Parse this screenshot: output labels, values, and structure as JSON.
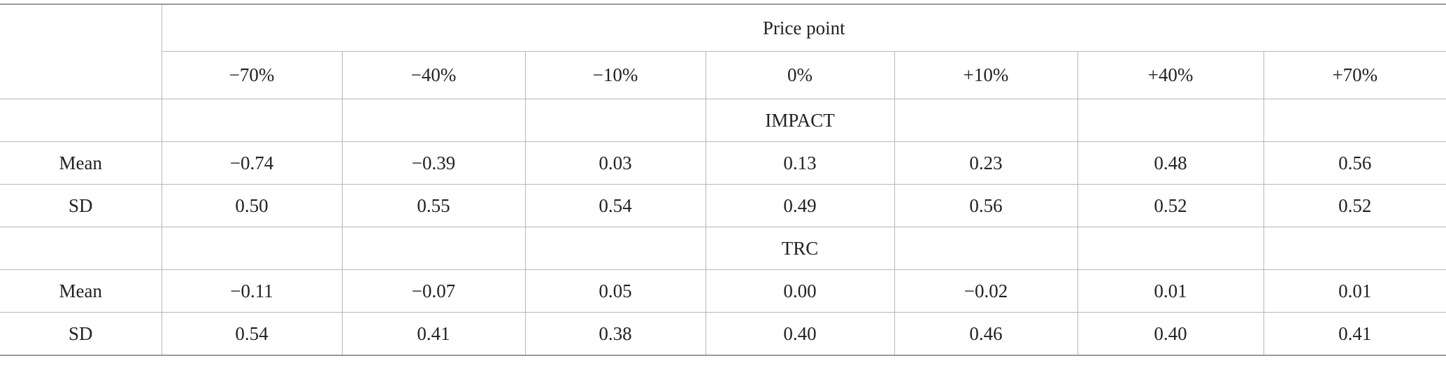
{
  "table": {
    "header_title": "Price point",
    "price_points": [
      "−70%",
      "−40%",
      "−10%",
      "0%",
      "+10%",
      "+40%",
      "+70%"
    ],
    "groups": [
      {
        "name": "IMPACT",
        "rows": [
          {
            "label": "Mean",
            "values": [
              "−0.74",
              "−0.39",
              "0.03",
              "0.13",
              "0.23",
              "0.48",
              "0.56"
            ]
          },
          {
            "label": "SD",
            "values": [
              "0.50",
              "0.55",
              "0.54",
              "0.49",
              "0.56",
              "0.52",
              "0.52"
            ]
          }
        ]
      },
      {
        "name": "TRC",
        "rows": [
          {
            "label": "Mean",
            "values": [
              "−0.11",
              "−0.07",
              "0.05",
              "0.00",
              "−0.02",
              "0.01",
              "0.01"
            ]
          },
          {
            "label": "SD",
            "values": [
              "0.54",
              "0.41",
              "0.38",
              "0.40",
              "0.46",
              "0.40",
              "0.41"
            ]
          }
        ]
      }
    ]
  }
}
